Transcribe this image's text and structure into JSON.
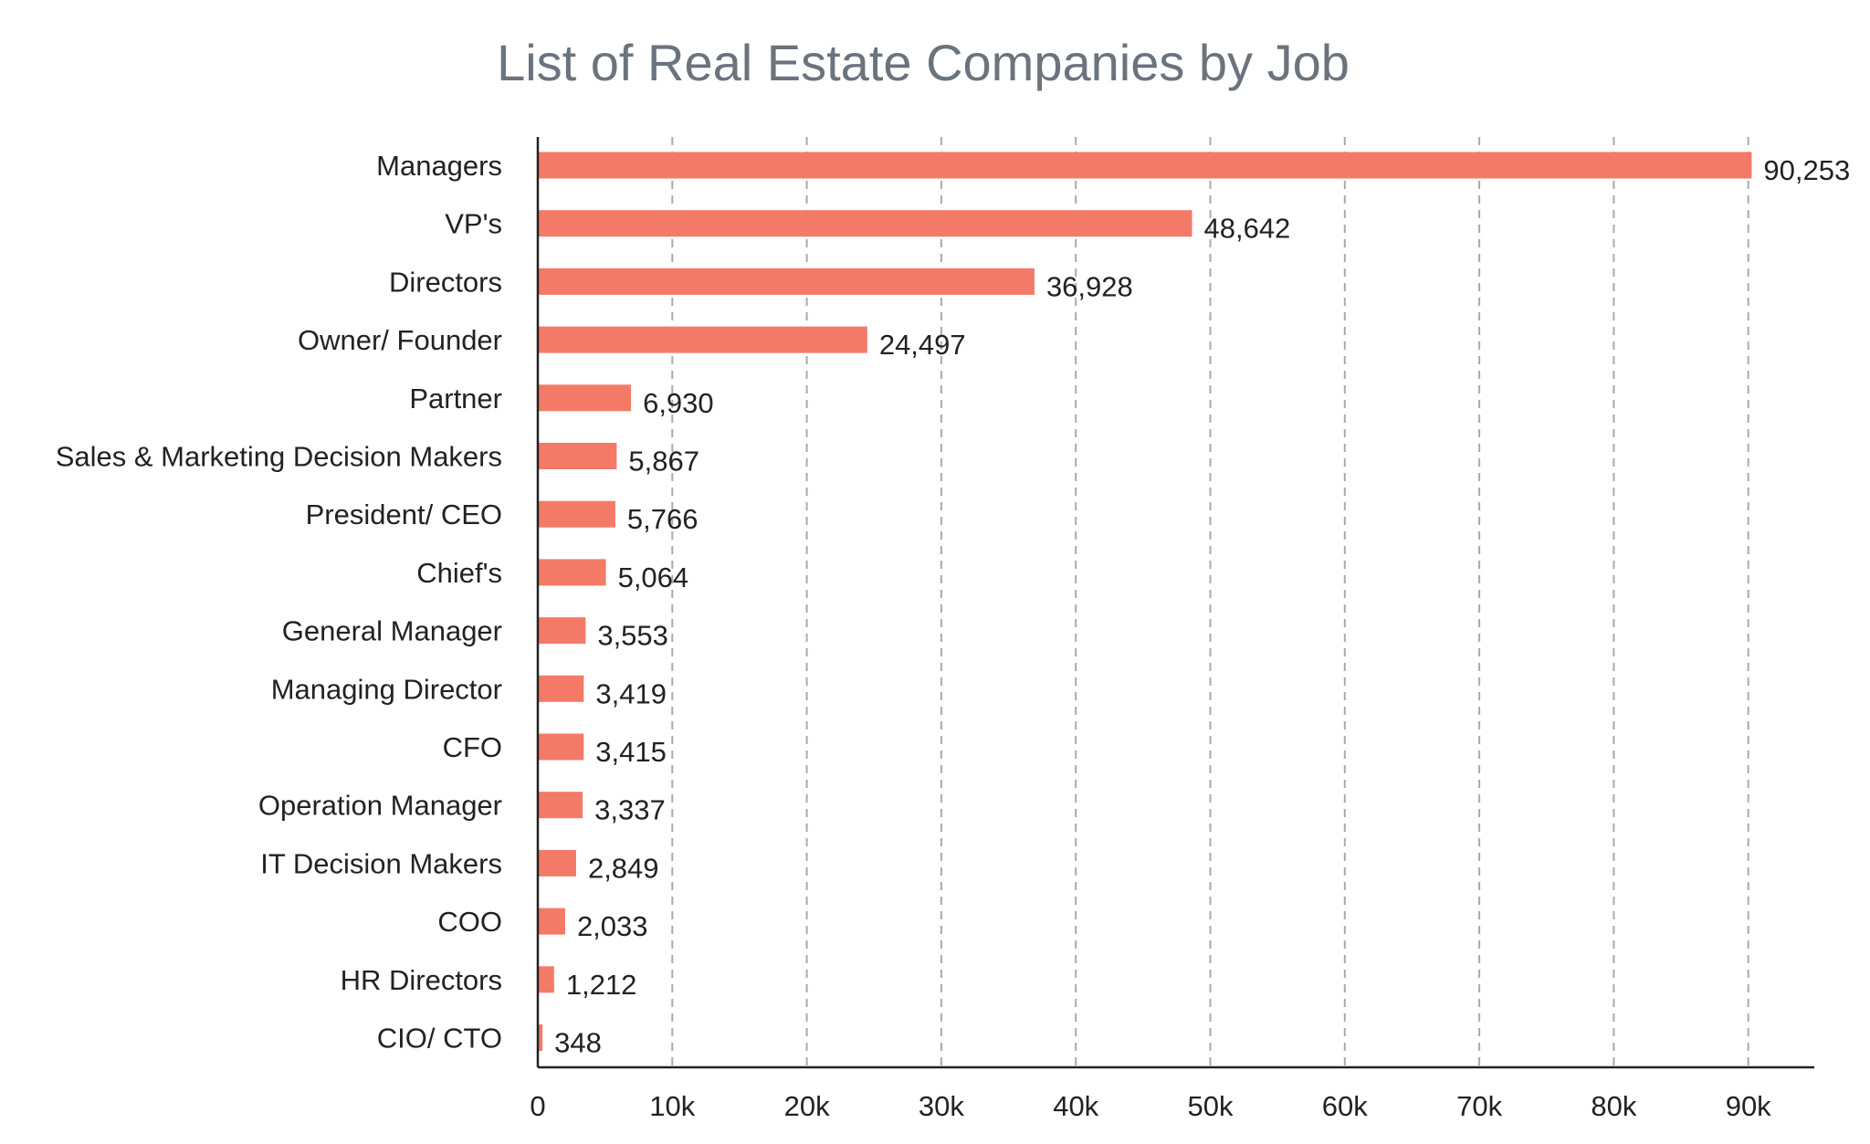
{
  "chart_data": {
    "type": "bar",
    "orientation": "horizontal",
    "title": "List of Real Estate Companies by Job",
    "xlabel": "",
    "ylabel": "",
    "categories": [
      "Managers",
      "VP's",
      "Directors",
      "Owner/ Founder",
      "Partner",
      "Sales & Marketing Decision Makers",
      "President/ CEO",
      "Chief's",
      "General Manager",
      "Managing Director",
      "CFO",
      "Operation Manager",
      "IT Decision Makers",
      "COO",
      "HR Directors",
      "CIO/ CTO"
    ],
    "values": [
      90253,
      48642,
      36928,
      24497,
      6930,
      5867,
      5766,
      5064,
      3553,
      3419,
      3415,
      3337,
      2849,
      2033,
      1212,
      348
    ],
    "value_labels": [
      "90,253",
      "48,642",
      "36,928",
      "24,497",
      "6,930",
      "5,867",
      "5,766",
      "5,064",
      "3,553",
      "3,419",
      "3,415",
      "3,337",
      "2,849",
      "2,033",
      "1,212",
      "348"
    ],
    "xlim": [
      0,
      95000
    ],
    "x_ticks": [
      0,
      10000,
      20000,
      30000,
      40000,
      50000,
      60000,
      70000,
      80000,
      90000
    ],
    "x_tick_labels": [
      "0",
      "10k",
      "20k",
      "30k",
      "40k",
      "50k",
      "60k",
      "70k",
      "80k",
      "90k"
    ],
    "grid": "vertical dashed",
    "bar_color": "#f47a68"
  }
}
